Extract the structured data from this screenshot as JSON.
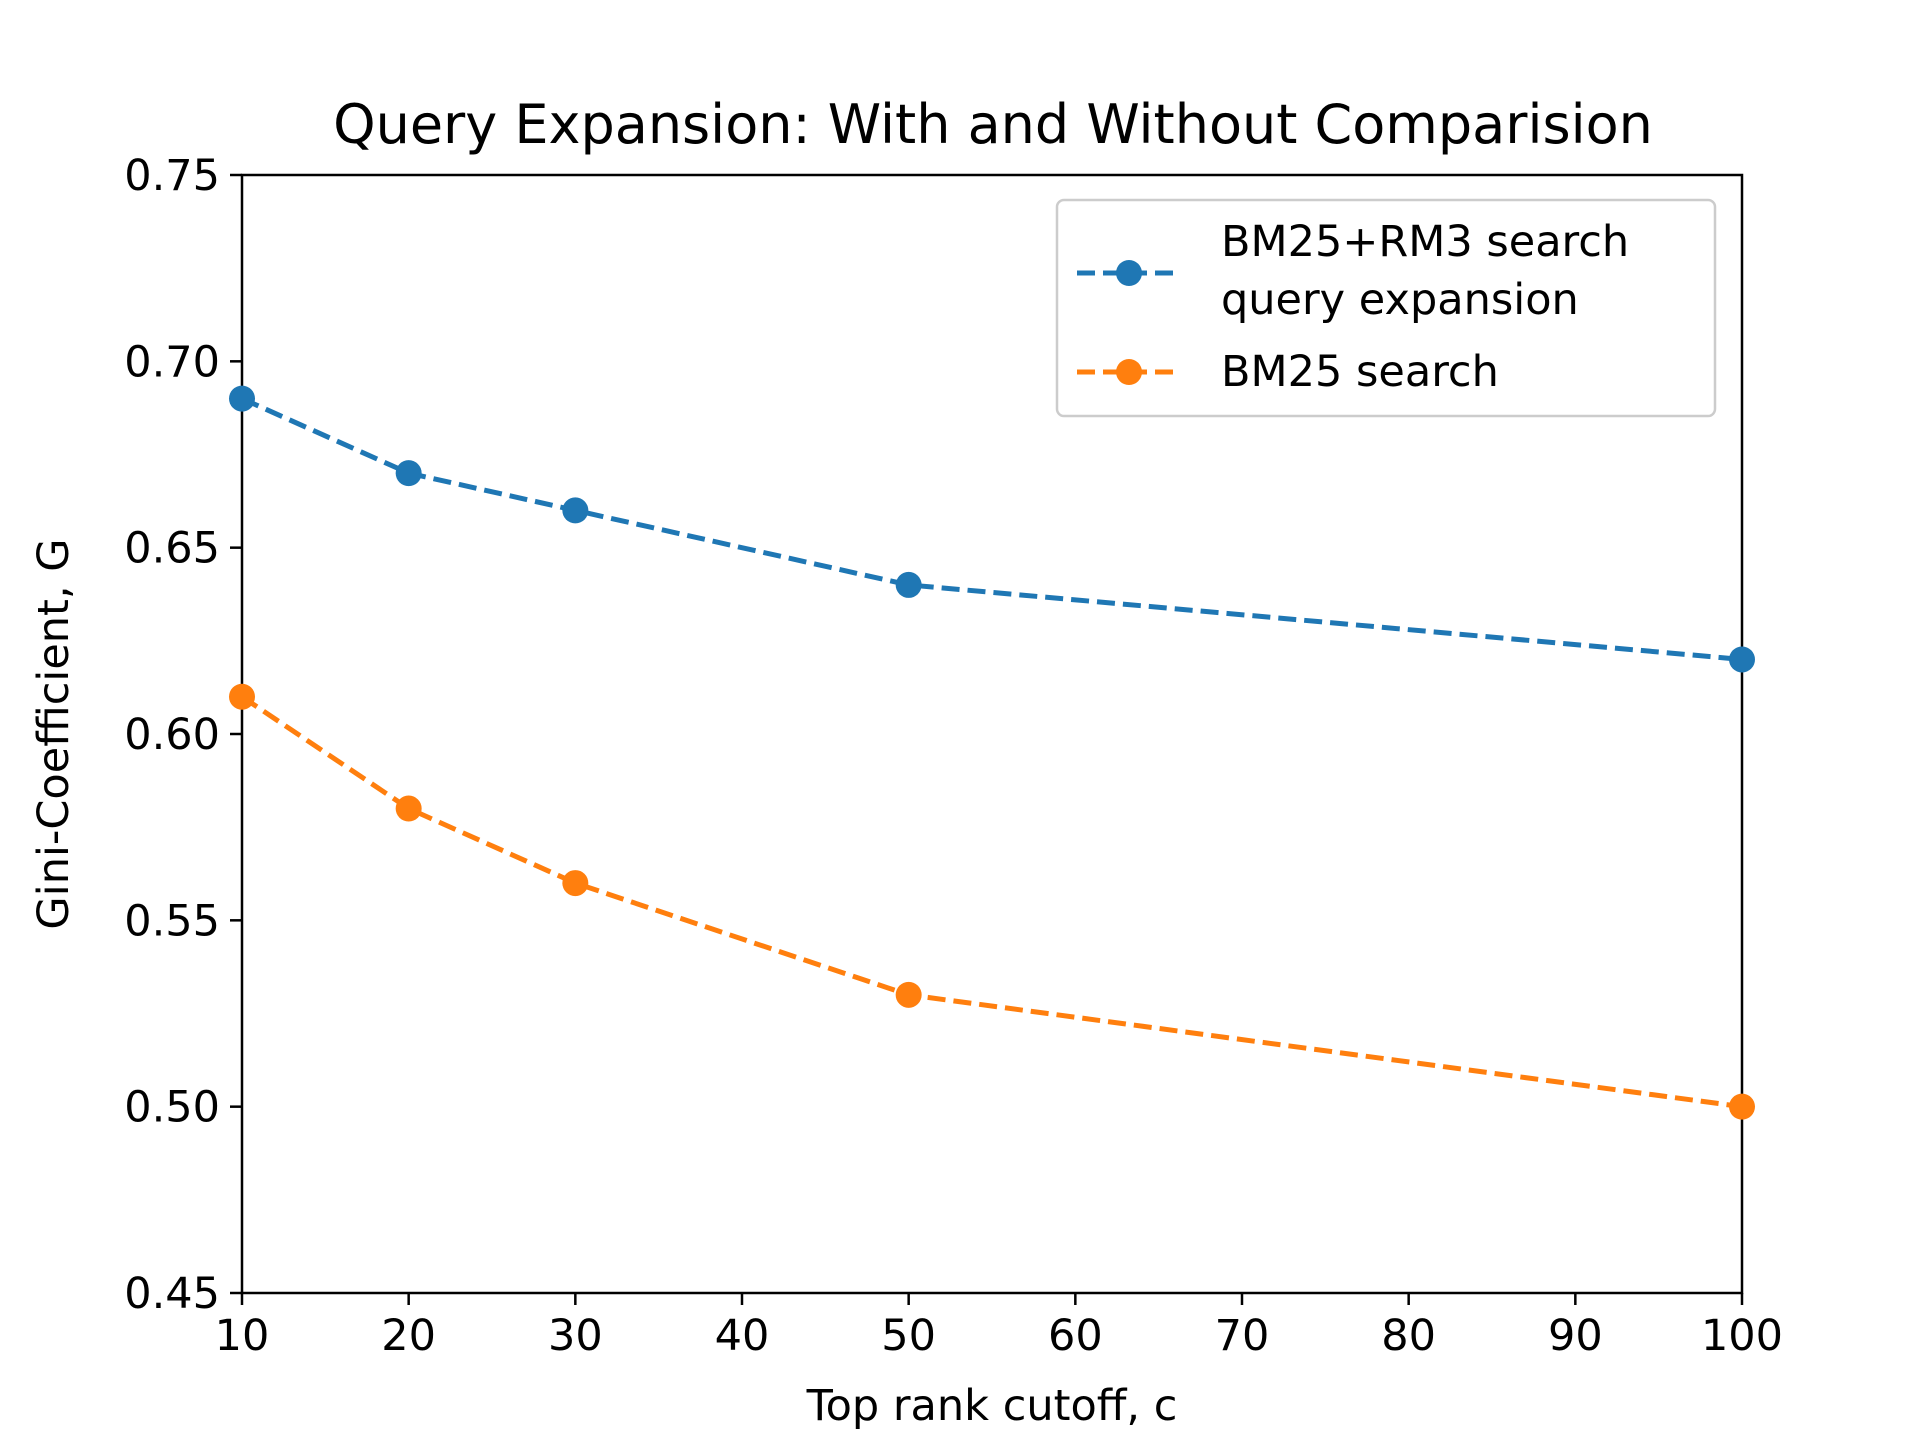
{
  "chart_data": {
    "type": "line",
    "title": "Query Expansion: With and Without Comparision",
    "xlabel": "Top rank cutoff, c",
    "ylabel": "Gini-Coefficient, G",
    "xlim": [
      10,
      100
    ],
    "ylim": [
      0.45,
      0.75
    ],
    "xticks": [
      10,
      20,
      30,
      40,
      50,
      60,
      70,
      80,
      90,
      100
    ],
    "xtick_labels": [
      "10",
      "20",
      "30",
      "40",
      "50",
      "60",
      "70",
      "80",
      "90",
      "100"
    ],
    "yticks": [
      0.45,
      0.5,
      0.55,
      0.6,
      0.65,
      0.7,
      0.75
    ],
    "ytick_labels": [
      "0.45",
      "0.50",
      "0.55",
      "0.60",
      "0.65",
      "0.70",
      "0.75"
    ],
    "grid": false,
    "legend_position": "top-right",
    "series": [
      {
        "name": "BM25+RM3 search\nquery expansion",
        "color": "#1f77b4",
        "line_style": "dashed",
        "marker": "circle",
        "x": [
          10,
          20,
          30,
          50,
          100
        ],
        "y": [
          0.69,
          0.67,
          0.66,
          0.64,
          0.62
        ]
      },
      {
        "name": "BM25 search",
        "color": "#ff7f0e",
        "line_style": "dashed",
        "marker": "circle",
        "x": [
          10,
          20,
          30,
          50,
          100
        ],
        "y": [
          0.61,
          0.58,
          0.56,
          0.53,
          0.5
        ]
      }
    ]
  }
}
